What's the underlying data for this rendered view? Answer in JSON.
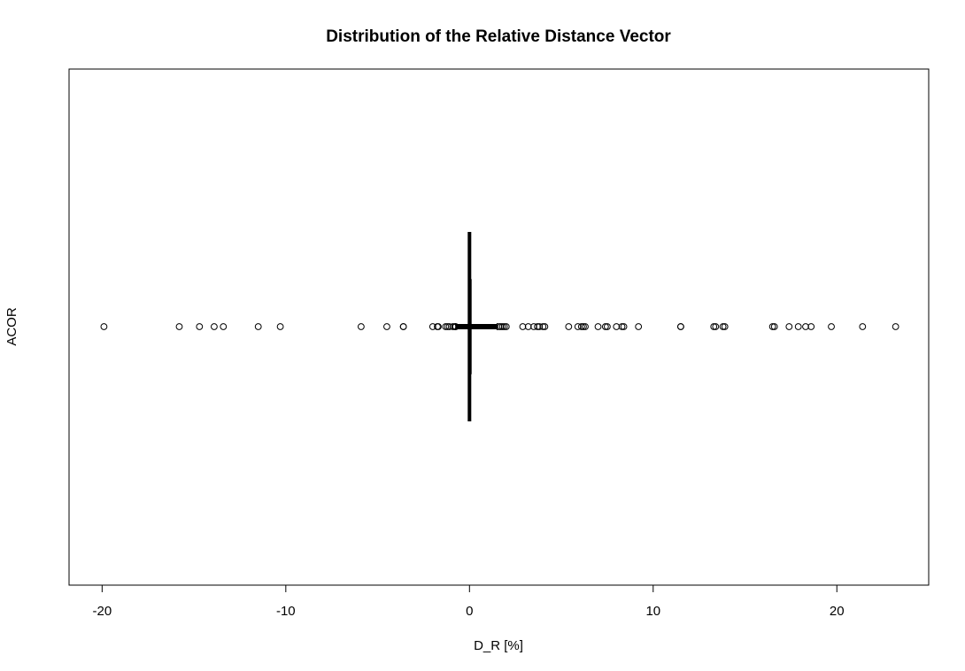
{
  "chart_data": {
    "type": "boxplot",
    "orientation": "horizontal",
    "title": "Distribution of the Relative Distance Vector",
    "xlabel": "D_R [%]",
    "ylabel": "ACOR",
    "xlim": [
      -21.8,
      25
    ],
    "xticks": [
      -20,
      -10,
      0,
      10,
      20
    ],
    "xtick_labels": [
      "-20",
      "-10",
      "0",
      "10",
      "20"
    ],
    "grid": false,
    "legend": "none",
    "box": {
      "whisker_low": -0.75,
      "q1": -0.05,
      "median": 0.0,
      "q3": 0.08,
      "whisker_high": 1.5
    },
    "outliers": [
      -19.9,
      -15.8,
      -14.7,
      -13.9,
      -13.4,
      -11.5,
      -10.3,
      -5.9,
      -4.5,
      -3.6,
      -3.6,
      -2.0,
      -1.75,
      -1.7,
      -1.3,
      -1.2,
      -1.1,
      -0.9,
      -0.8,
      -0.75,
      1.6,
      1.7,
      1.8,
      1.9,
      2.0,
      2.9,
      3.2,
      3.5,
      3.7,
      3.8,
      4.0,
      4.1,
      5.4,
      5.9,
      6.1,
      6.2,
      6.3,
      7.0,
      7.4,
      7.5,
      8.0,
      8.3,
      8.4,
      9.2,
      11.5,
      11.5,
      13.3,
      13.4,
      13.8,
      13.9,
      16.5,
      16.6,
      17.4,
      17.9,
      18.3,
      18.6,
      19.7,
      21.4,
      23.2
    ]
  }
}
